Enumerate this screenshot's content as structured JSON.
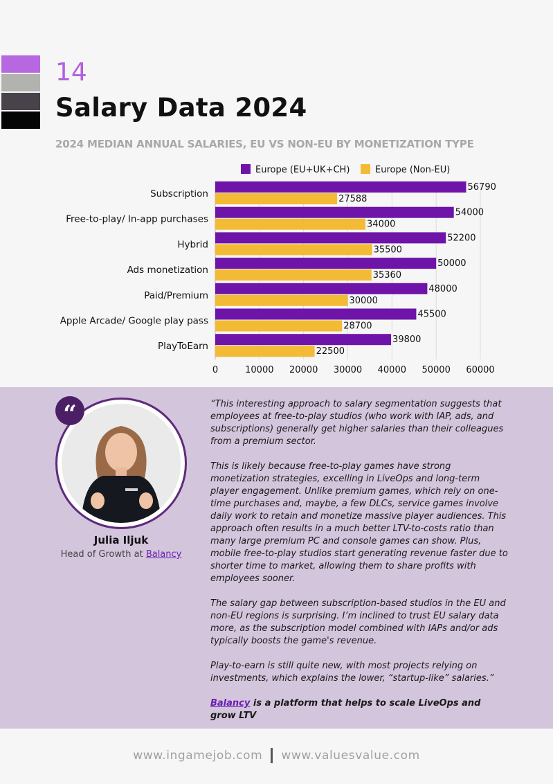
{
  "header": {
    "page_number": "14",
    "title": "Salary Data 2024",
    "subtitle": "2024 MEDIAN ANNUAL SALARIES, EU VS NON-EU BY MONETIZATION TYPE",
    "swatch_colors": [
      "#b768e0",
      "#b2b2ae",
      "#48434a",
      "#050505"
    ]
  },
  "chart_data": {
    "type": "bar",
    "orientation": "horizontal",
    "title": "2024 MEDIAN ANNUAL SALARIES, EU VS NON-EU BY MONETIZATION TYPE",
    "categories": [
      "Subscription",
      "Free-to-play/ In-app purchases",
      "Hybrid",
      "Ads monetization",
      "Paid/Premium",
      "Apple Arcade/ Google play pass",
      "PlayToEarn"
    ],
    "series": [
      {
        "name": "Europe (EU+UK+CH)",
        "color": "#6e14a8",
        "values": [
          56790,
          54000,
          52200,
          50000,
          48000,
          45500,
          39800
        ]
      },
      {
        "name": "Europe (Non-EU)",
        "color": "#f3bb35",
        "values": [
          27588,
          34000,
          35500,
          35360,
          30000,
          28700,
          22500
        ]
      }
    ],
    "xlim": [
      0,
      60000
    ],
    "xticks": [
      0,
      10000,
      20000,
      30000,
      40000,
      50000,
      60000
    ],
    "grid": true,
    "legend_position": "top"
  },
  "quote": {
    "badge": "“",
    "person_name": "Julia Iljuk",
    "person_role": "Head of Growth at",
    "company_link": "Balancy",
    "paragraphs": [
      "“This interesting approach to salary segmentation suggests that employees at free-to-play studios (who work with IAP, ads, and subscriptions) generally get higher salaries than their colleagues from a premium sector.",
      "This is likely because free-to-play games have strong monetization strategies, excelling in LiveOps and long-term player engagement. Unlike premium games, which rely on one-time purchases and, maybe, a few DLCs, service games involve daily work to retain and monetize massive player audiences. This approach often results in a much better LTV-to-costs ratio than many large premium PC and console games can show. Plus, mobile free-to-play studios start generating revenue faster due to shorter time to market, allowing them to share profits with employees sooner.",
      "The salary gap between subscription-based studios in the EU and non-EU regions is surprising. I’m inclined to trust EU salary data more, as the subscription model combined with IAPs and/or ads typically boosts the game's revenue.",
      "Play-to-earn is still quite new, with most projects relying on investments, which explains the lower, “startup-like” salaries.”"
    ],
    "footer_link": "Balancy",
    "footer_text": " is a platform that helps to scale LiveOps and grow LTV"
  },
  "footer": {
    "left": "www.ingamejob.com",
    "right": "www.valuesvalue.com"
  }
}
